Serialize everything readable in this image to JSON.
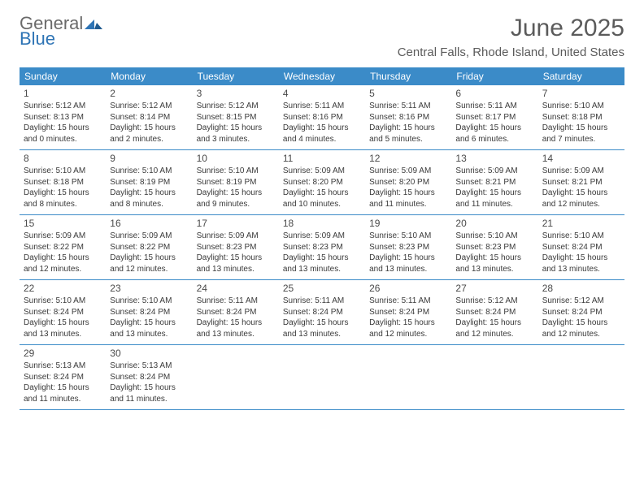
{
  "brand": {
    "text_general": "General",
    "text_blue": "Blue",
    "logo_color": "#2e74b5",
    "general_color": "#6a6a6a"
  },
  "title": "June 2025",
  "location": "Central Falls, Rhode Island, United States",
  "colors": {
    "header_bg": "#3b8bc8",
    "header_text": "#ffffff",
    "border": "#3b8bc8",
    "text": "#3a3a3a",
    "title_color": "#5b5b5b"
  },
  "weekdays": [
    "Sunday",
    "Monday",
    "Tuesday",
    "Wednesday",
    "Thursday",
    "Friday",
    "Saturday"
  ],
  "weeks": [
    [
      {
        "n": "1",
        "sunrise": "5:12 AM",
        "sunset": "8:13 PM",
        "daylight": "15 hours and 0 minutes."
      },
      {
        "n": "2",
        "sunrise": "5:12 AM",
        "sunset": "8:14 PM",
        "daylight": "15 hours and 2 minutes."
      },
      {
        "n": "3",
        "sunrise": "5:12 AM",
        "sunset": "8:15 PM",
        "daylight": "15 hours and 3 minutes."
      },
      {
        "n": "4",
        "sunrise": "5:11 AM",
        "sunset": "8:16 PM",
        "daylight": "15 hours and 4 minutes."
      },
      {
        "n": "5",
        "sunrise": "5:11 AM",
        "sunset": "8:16 PM",
        "daylight": "15 hours and 5 minutes."
      },
      {
        "n": "6",
        "sunrise": "5:11 AM",
        "sunset": "8:17 PM",
        "daylight": "15 hours and 6 minutes."
      },
      {
        "n": "7",
        "sunrise": "5:10 AM",
        "sunset": "8:18 PM",
        "daylight": "15 hours and 7 minutes."
      }
    ],
    [
      {
        "n": "8",
        "sunrise": "5:10 AM",
        "sunset": "8:18 PM",
        "daylight": "15 hours and 8 minutes."
      },
      {
        "n": "9",
        "sunrise": "5:10 AM",
        "sunset": "8:19 PM",
        "daylight": "15 hours and 8 minutes."
      },
      {
        "n": "10",
        "sunrise": "5:10 AM",
        "sunset": "8:19 PM",
        "daylight": "15 hours and 9 minutes."
      },
      {
        "n": "11",
        "sunrise": "5:09 AM",
        "sunset": "8:20 PM",
        "daylight": "15 hours and 10 minutes."
      },
      {
        "n": "12",
        "sunrise": "5:09 AM",
        "sunset": "8:20 PM",
        "daylight": "15 hours and 11 minutes."
      },
      {
        "n": "13",
        "sunrise": "5:09 AM",
        "sunset": "8:21 PM",
        "daylight": "15 hours and 11 minutes."
      },
      {
        "n": "14",
        "sunrise": "5:09 AM",
        "sunset": "8:21 PM",
        "daylight": "15 hours and 12 minutes."
      }
    ],
    [
      {
        "n": "15",
        "sunrise": "5:09 AM",
        "sunset": "8:22 PM",
        "daylight": "15 hours and 12 minutes."
      },
      {
        "n": "16",
        "sunrise": "5:09 AM",
        "sunset": "8:22 PM",
        "daylight": "15 hours and 12 minutes."
      },
      {
        "n": "17",
        "sunrise": "5:09 AM",
        "sunset": "8:23 PM",
        "daylight": "15 hours and 13 minutes."
      },
      {
        "n": "18",
        "sunrise": "5:09 AM",
        "sunset": "8:23 PM",
        "daylight": "15 hours and 13 minutes."
      },
      {
        "n": "19",
        "sunrise": "5:10 AM",
        "sunset": "8:23 PM",
        "daylight": "15 hours and 13 minutes."
      },
      {
        "n": "20",
        "sunrise": "5:10 AM",
        "sunset": "8:23 PM",
        "daylight": "15 hours and 13 minutes."
      },
      {
        "n": "21",
        "sunrise": "5:10 AM",
        "sunset": "8:24 PM",
        "daylight": "15 hours and 13 minutes."
      }
    ],
    [
      {
        "n": "22",
        "sunrise": "5:10 AM",
        "sunset": "8:24 PM",
        "daylight": "15 hours and 13 minutes."
      },
      {
        "n": "23",
        "sunrise": "5:10 AM",
        "sunset": "8:24 PM",
        "daylight": "15 hours and 13 minutes."
      },
      {
        "n": "24",
        "sunrise": "5:11 AM",
        "sunset": "8:24 PM",
        "daylight": "15 hours and 13 minutes."
      },
      {
        "n": "25",
        "sunrise": "5:11 AM",
        "sunset": "8:24 PM",
        "daylight": "15 hours and 13 minutes."
      },
      {
        "n": "26",
        "sunrise": "5:11 AM",
        "sunset": "8:24 PM",
        "daylight": "15 hours and 12 minutes."
      },
      {
        "n": "27",
        "sunrise": "5:12 AM",
        "sunset": "8:24 PM",
        "daylight": "15 hours and 12 minutes."
      },
      {
        "n": "28",
        "sunrise": "5:12 AM",
        "sunset": "8:24 PM",
        "daylight": "15 hours and 12 minutes."
      }
    ],
    [
      {
        "n": "29",
        "sunrise": "5:13 AM",
        "sunset": "8:24 PM",
        "daylight": "15 hours and 11 minutes."
      },
      {
        "n": "30",
        "sunrise": "5:13 AM",
        "sunset": "8:24 PM",
        "daylight": "15 hours and 11 minutes."
      },
      null,
      null,
      null,
      null,
      null
    ]
  ],
  "labels": {
    "sunrise": "Sunrise:",
    "sunset": "Sunset:",
    "daylight": "Daylight:"
  }
}
